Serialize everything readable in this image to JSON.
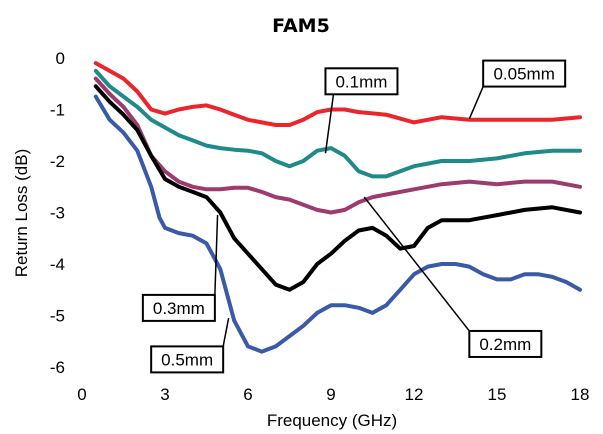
{
  "chart_data": {
    "type": "line",
    "title": "FAM5",
    "xlabel": "Frequency (GHz)",
    "ylabel": "Return Loss (dB)",
    "xlim": [
      0,
      18
    ],
    "ylim": [
      -6,
      0
    ],
    "xticks": [
      0,
      3,
      6,
      9,
      12,
      15,
      18
    ],
    "yticks": [
      0,
      -1,
      -2,
      -3,
      -4,
      -5,
      -6
    ],
    "grid": false,
    "legend": "callout labels",
    "series": [
      {
        "name": "0.05mm",
        "color": "#e8262b",
        "x": [
          0.5,
          1,
          1.5,
          2,
          2.5,
          3,
          3.5,
          4,
          4.5,
          5,
          5.5,
          6,
          6.5,
          7,
          7.5,
          8,
          8.5,
          9,
          9.5,
          10,
          11,
          12,
          13,
          14,
          15,
          16,
          17,
          18
        ],
        "y": [
          -0.1,
          -0.25,
          -0.4,
          -0.65,
          -1.0,
          -1.08,
          -1.0,
          -0.95,
          -0.92,
          -1.0,
          -1.1,
          -1.2,
          -1.25,
          -1.3,
          -1.3,
          -1.2,
          -1.05,
          -1.0,
          -1.0,
          -1.05,
          -1.1,
          -1.25,
          -1.15,
          -1.2,
          -1.2,
          -1.2,
          -1.2,
          -1.15
        ]
      },
      {
        "name": "0.1mm",
        "color": "#1e8a8a",
        "x": [
          0.5,
          1,
          1.5,
          2,
          2.5,
          3,
          3.5,
          4,
          4.5,
          5,
          5.5,
          6,
          6.5,
          7,
          7.5,
          8,
          8.5,
          9,
          9.5,
          10,
          10.5,
          11,
          11.5,
          12,
          12.5,
          13,
          14,
          15,
          16,
          17,
          18
        ],
        "y": [
          -0.25,
          -0.55,
          -0.75,
          -0.95,
          -1.2,
          -1.35,
          -1.5,
          -1.6,
          -1.7,
          -1.75,
          -1.78,
          -1.8,
          -1.85,
          -2.0,
          -2.1,
          -2.0,
          -1.8,
          -1.75,
          -1.9,
          -2.2,
          -2.3,
          -2.3,
          -2.2,
          -2.1,
          -2.05,
          -2.0,
          -2.0,
          -1.95,
          -1.85,
          -1.8,
          -1.8
        ]
      },
      {
        "name": "0.2mm",
        "color": "#9c3b6e",
        "x": [
          0.5,
          1,
          1.5,
          2,
          2.5,
          3,
          3.5,
          4,
          4.5,
          5,
          5.5,
          6,
          6.5,
          7,
          7.5,
          8,
          8.5,
          9,
          9.5,
          10,
          10.5,
          11,
          12,
          13,
          14,
          15,
          16,
          17,
          18
        ],
        "y": [
          -0.4,
          -0.7,
          -0.95,
          -1.3,
          -1.9,
          -2.2,
          -2.4,
          -2.5,
          -2.55,
          -2.55,
          -2.52,
          -2.52,
          -2.6,
          -2.7,
          -2.75,
          -2.85,
          -2.95,
          -3.0,
          -2.95,
          -2.8,
          -2.7,
          -2.65,
          -2.55,
          -2.45,
          -2.4,
          -2.45,
          -2.4,
          -2.4,
          -2.5
        ]
      },
      {
        "name": "0.3mm",
        "color": "#000000",
        "x": [
          0.5,
          1,
          1.5,
          2,
          2.5,
          3,
          3.5,
          4,
          4.5,
          5,
          5.5,
          6,
          6.5,
          7,
          7.5,
          8,
          8.5,
          9,
          9.5,
          10,
          10.5,
          11,
          11.5,
          12,
          12.5,
          13,
          14,
          15,
          16,
          17,
          18
        ],
        "y": [
          -0.55,
          -0.85,
          -1.1,
          -1.4,
          -1.9,
          -2.35,
          -2.5,
          -2.6,
          -2.7,
          -3.0,
          -3.5,
          -3.8,
          -4.1,
          -4.4,
          -4.5,
          -4.35,
          -4.0,
          -3.8,
          -3.55,
          -3.35,
          -3.3,
          -3.45,
          -3.7,
          -3.65,
          -3.3,
          -3.15,
          -3.15,
          -3.05,
          -2.95,
          -2.9,
          -3.0
        ]
      },
      {
        "name": "0.5mm",
        "color": "#3a5aa8",
        "x": [
          0.5,
          1,
          1.5,
          2,
          2.5,
          2.8,
          3,
          3.5,
          4,
          4.5,
          5,
          5.5,
          6,
          6.5,
          7,
          7.5,
          8,
          8.5,
          9,
          9.5,
          10,
          10.5,
          11,
          11.5,
          12,
          12.5,
          13,
          13.5,
          14,
          14.5,
          15,
          15.5,
          16,
          16.5,
          17,
          17.5,
          18
        ],
        "y": [
          -0.75,
          -1.2,
          -1.45,
          -1.8,
          -2.5,
          -3.1,
          -3.3,
          -3.4,
          -3.45,
          -3.6,
          -4.1,
          -5.1,
          -5.6,
          -5.7,
          -5.6,
          -5.4,
          -5.2,
          -4.95,
          -4.8,
          -4.8,
          -4.85,
          -4.95,
          -4.8,
          -4.5,
          -4.2,
          -4.05,
          -4.0,
          -4.0,
          -4.05,
          -4.2,
          -4.3,
          -4.3,
          -4.2,
          -4.2,
          -4.25,
          -4.35,
          -4.5
        ]
      }
    ],
    "annotations": [
      {
        "text": "0.05mm",
        "series": "0.05mm",
        "box": [
          14.5,
          -0.05
        ],
        "point": [
          14.0,
          -1.18
        ]
      },
      {
        "text": "0.1mm",
        "series": "0.1mm",
        "box": [
          8.8,
          -0.2
        ],
        "point": [
          8.8,
          -1.85
        ]
      },
      {
        "text": "0.2mm",
        "series": "0.2mm",
        "box": [
          14.0,
          -5.3
        ],
        "point": [
          10.2,
          -2.7
        ]
      },
      {
        "text": "0.3mm",
        "series": "0.3mm",
        "box": [
          2.2,
          -4.6
        ],
        "point": [
          4.9,
          -3.05
        ]
      },
      {
        "text": "0.5mm",
        "series": "0.5mm",
        "box": [
          2.5,
          -5.6
        ],
        "point": [
          5.3,
          -5.05
        ]
      }
    ]
  }
}
